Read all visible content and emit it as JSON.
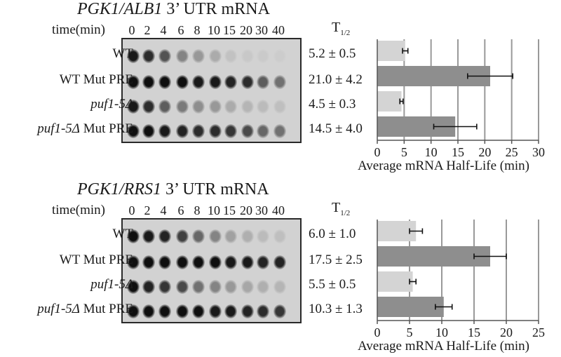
{
  "panels": [
    {
      "title_gene": "PGK1/ALB1",
      "title_rest": " 3’ UTR mRNA",
      "time_label": "time(min)",
      "timepoints": [
        "0",
        "2",
        "4",
        "6",
        "8",
        "10",
        "15",
        "20",
        "30",
        "40"
      ],
      "thalf_label": "T",
      "thalf_sub": "1/2",
      "rows": [
        {
          "name": "WT",
          "italic": "",
          "suffix": "",
          "thalf": "5.2 ± 0.5",
          "band_intensity": [
            0.95,
            0.85,
            0.65,
            0.4,
            0.3,
            0.2,
            0.08,
            0.05,
            0.04,
            0.03
          ]
        },
        {
          "name": "",
          "italic": "",
          "suffix": "WT Mut PRE",
          "thalf": "21.0 ± 4.2",
          "band_intensity": [
            1.0,
            1.0,
            1.0,
            1.0,
            0.95,
            0.95,
            0.9,
            0.85,
            0.6,
            0.5
          ]
        },
        {
          "name": "",
          "italic": "puf1-5Δ",
          "suffix": "",
          "thalf": "4.5 ± 0.3",
          "band_intensity": [
            0.95,
            0.85,
            0.6,
            0.45,
            0.35,
            0.3,
            0.2,
            0.15,
            0.12,
            0.1
          ]
        },
        {
          "name": "",
          "italic": "puf1-5Δ",
          "suffix": " Mut PRE",
          "thalf": "14.5 ± 4.0",
          "band_intensity": [
            1.0,
            1.0,
            0.95,
            0.9,
            0.85,
            0.85,
            0.8,
            0.7,
            0.55,
            0.5
          ]
        }
      ],
      "chart_data": {
        "type": "bar",
        "orientation": "horizontal",
        "categories": [
          "WT",
          "WT Mut PRE",
          "puf1-5Δ",
          "puf1-5Δ Mut PRE"
        ],
        "values": [
          5.2,
          21.0,
          4.5,
          14.5
        ],
        "errors": [
          0.5,
          4.2,
          0.3,
          4.0
        ],
        "bar_colors": [
          "#d4d4d4",
          "#8e8e8e",
          "#d4d4d4",
          "#8e8e8e"
        ],
        "xlim": [
          0,
          30
        ],
        "xticks": [
          0,
          5,
          10,
          15,
          20,
          25,
          30
        ],
        "xlabel": "Average mRNA Half-Life (min)",
        "grid": true
      }
    },
    {
      "title_gene": "PGK1/RRS1",
      "title_rest": " 3’ UTR mRNA",
      "time_label": "time(min)",
      "timepoints": [
        "0",
        "2",
        "4",
        "6",
        "8",
        "10",
        "15",
        "20",
        "30",
        "40"
      ],
      "thalf_label": "T",
      "thalf_sub": "1/2",
      "rows": [
        {
          "name": "WT",
          "italic": "",
          "suffix": "",
          "thalf": "6.0 ± 1.0",
          "band_intensity": [
            1.0,
            0.95,
            0.9,
            0.75,
            0.55,
            0.4,
            0.25,
            0.18,
            0.12,
            0.1
          ]
        },
        {
          "name": "",
          "italic": "",
          "suffix": "WT Mut PRE",
          "thalf": "17.5 ± 2.5",
          "band_intensity": [
            1.0,
            1.0,
            1.0,
            1.0,
            1.0,
            1.0,
            0.95,
            0.95,
            0.9,
            0.9
          ]
        },
        {
          "name": "",
          "italic": "puf1-5Δ",
          "suffix": "",
          "thalf": "5.5 ± 0.5",
          "band_intensity": [
            1.0,
            0.9,
            0.8,
            0.7,
            0.5,
            0.4,
            0.3,
            0.22,
            0.18,
            0.15
          ]
        },
        {
          "name": "",
          "italic": "puf1-5Δ",
          "suffix": " Mut PRE",
          "thalf": "10.3 ± 1.3",
          "band_intensity": [
            1.0,
            1.0,
            1.0,
            1.0,
            1.0,
            0.95,
            0.95,
            0.9,
            0.85,
            0.8
          ]
        }
      ],
      "chart_data": {
        "type": "bar",
        "orientation": "horizontal",
        "categories": [
          "WT",
          "WT Mut PRE",
          "puf1-5Δ",
          "puf1-5Δ Mut PRE"
        ],
        "values": [
          6.0,
          17.5,
          5.5,
          10.3
        ],
        "errors": [
          1.0,
          2.5,
          0.5,
          1.3
        ],
        "bar_colors": [
          "#d4d4d4",
          "#8e8e8e",
          "#d4d4d4",
          "#8e8e8e"
        ],
        "xlim": [
          0,
          25
        ],
        "xticks": [
          0,
          5,
          10,
          15,
          20,
          25
        ],
        "xlabel": "Average mRNA Half-Life (min)",
        "grid": true
      }
    }
  ]
}
